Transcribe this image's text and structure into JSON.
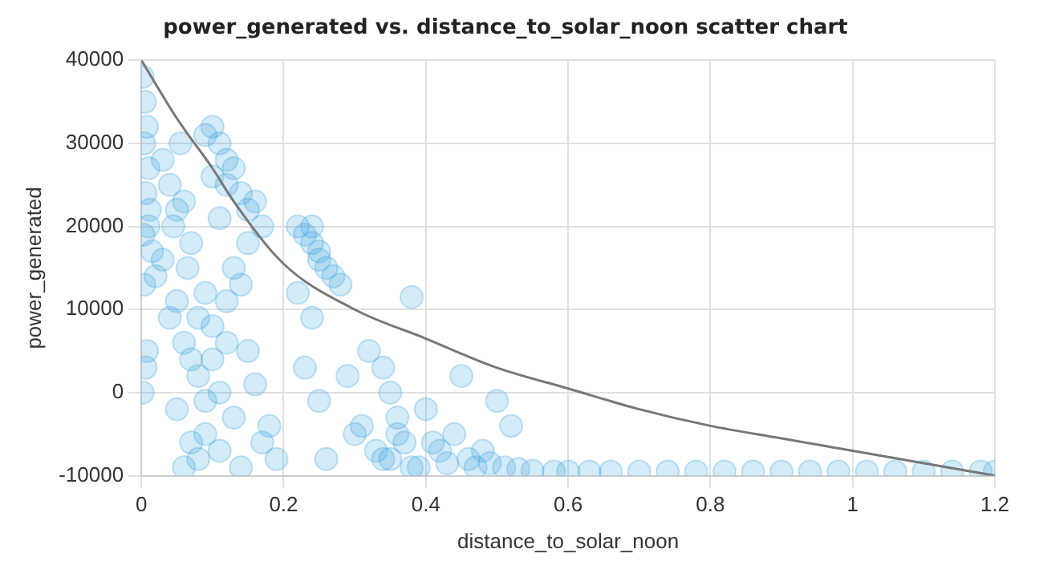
{
  "chart_data": {
    "type": "scatter",
    "title": "power_generated vs. distance_to_solar_noon scatter chart",
    "xlabel": "distance_to_solar_noon",
    "ylabel": "power_generated",
    "xlim": [
      0,
      1.2
    ],
    "xticks": [
      0,
      0.2,
      0.4,
      0.6,
      0.8,
      1,
      1.2
    ],
    "ylim": [
      -10000,
      40000
    ],
    "yticks": [
      -10000,
      0,
      10000,
      20000,
      30000,
      40000
    ],
    "grid": true,
    "legend": false,
    "marker": "circle",
    "series": [
      {
        "color": "#3aa6df",
        "x": [
          0.002,
          0.005,
          0.008,
          0.004,
          0.01,
          0.006,
          0.012,
          0.003,
          0.015,
          0.02,
          0.004,
          0.008,
          0.002,
          0.006,
          0.01,
          0.03,
          0.04,
          0.05,
          0.06,
          0.07,
          0.055,
          0.065,
          0.045,
          0.09,
          0.1,
          0.11,
          0.12,
          0.1,
          0.13,
          0.14,
          0.15,
          0.11,
          0.12,
          0.16,
          0.17,
          0.15,
          0.13,
          0.09,
          0.08,
          0.1,
          0.12,
          0.14,
          0.06,
          0.07,
          0.08,
          0.05,
          0.09,
          0.11,
          0.13,
          0.16,
          0.18,
          0.19,
          0.17,
          0.15,
          0.12,
          0.1,
          0.08,
          0.06,
          0.07,
          0.09,
          0.11,
          0.14,
          0.04,
          0.03,
          0.05,
          0.22,
          0.23,
          0.24,
          0.25,
          0.26,
          0.27,
          0.28,
          0.24,
          0.23,
          0.25,
          0.22,
          0.26,
          0.25,
          0.24,
          0.29,
          0.3,
          0.32,
          0.34,
          0.33,
          0.35,
          0.36,
          0.37,
          0.38,
          0.35,
          0.4,
          0.42,
          0.44,
          0.45,
          0.46,
          0.48,
          0.5,
          0.52,
          0.43,
          0.41,
          0.39,
          0.36,
          0.34,
          0.31,
          0.47,
          0.49,
          0.51,
          0.38,
          0.53,
          0.55,
          0.58,
          0.6,
          0.63,
          0.66,
          0.7,
          0.74,
          0.78,
          0.82,
          0.86,
          0.9,
          0.94,
          0.98,
          1.02,
          1.06,
          1.1,
          1.14,
          1.18,
          1.2
        ],
        "values": [
          38000,
          35000,
          32000,
          30000,
          27000,
          24000,
          22000,
          19000,
          17000,
          14000,
          13000,
          5000,
          0,
          3000,
          20000,
          28000,
          25000,
          22000,
          23000,
          18000,
          30000,
          15000,
          20000,
          31000,
          32000,
          30000,
          28000,
          26000,
          27000,
          24000,
          22000,
          21000,
          25000,
          23000,
          20000,
          18000,
          15000,
          12000,
          9000,
          8000,
          11000,
          13000,
          6000,
          4000,
          2000,
          -2000,
          -5000,
          -7000,
          -3000,
          1000,
          -4000,
          -8000,
          -6000,
          5000,
          6000,
          4000,
          -8000,
          -9000,
          -6000,
          -1000,
          0,
          -9000,
          9000,
          16000,
          11000,
          20000,
          19000,
          18000,
          17000,
          15000,
          14000,
          13000,
          9000,
          3000,
          -1000,
          12000,
          -8000,
          16000,
          20000,
          2000,
          -5000,
          5000,
          3000,
          -7000,
          0,
          -3000,
          -6000,
          11500,
          -8000,
          -2000,
          -7000,
          -5000,
          2000,
          -8000,
          -7000,
          -1000,
          -4000,
          -8500,
          -6000,
          -9000,
          -5000,
          -8000,
          -4000,
          -9000,
          -8500,
          -9000,
          -9000,
          -9200,
          -9400,
          -9500,
          -9500,
          -9500,
          -9500,
          -9500,
          -9500,
          -9500,
          -9500,
          -9500,
          -9500,
          -9500,
          -9500,
          -9500,
          -9500,
          -9500,
          -9500,
          -9500,
          -9500
        ]
      },
      {
        "type": "line",
        "color": "#777777",
        "marker": "none",
        "x": [
          0,
          0.05,
          0.1,
          0.13,
          0.2,
          0.3,
          0.4,
          0.5,
          0.6,
          0.7,
          0.8,
          0.9,
          1,
          1.1,
          1.2
        ],
        "values": [
          40000,
          33000,
          27000,
          23000,
          15500,
          10000,
          6500,
          3000,
          500,
          -2000,
          -4000,
          -5500,
          -7000,
          -8500,
          -10000
        ]
      }
    ]
  }
}
